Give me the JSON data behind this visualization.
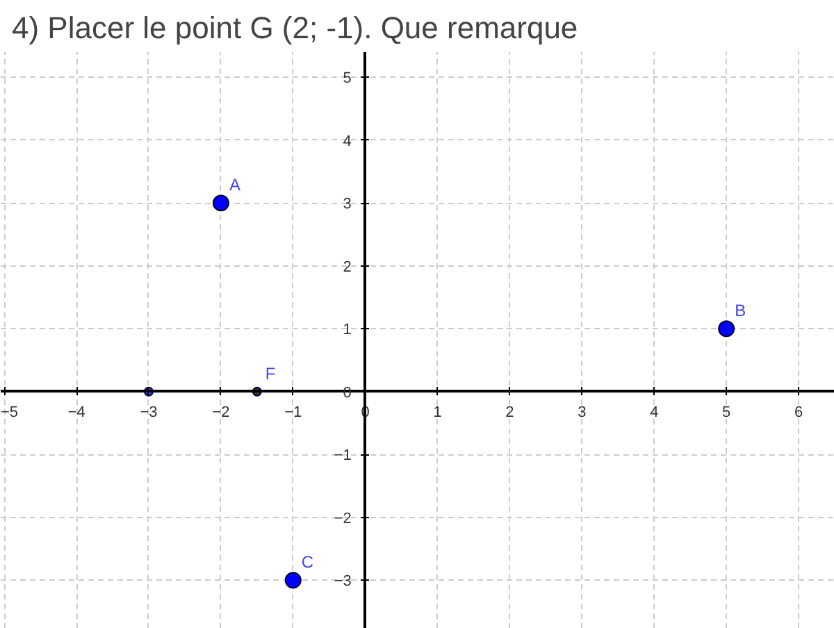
{
  "chart_data": {
    "type": "scatter",
    "title": "4) Placer le point G (2; -1). Que remarque",
    "series": [
      {
        "color": "#0000ff",
        "x": [
          -2,
          5,
          -1
        ],
        "values": [
          3,
          1,
          -3
        ]
      },
      {
        "color": "#4040ff",
        "x": [
          -3
        ],
        "values": [
          0
        ]
      },
      {
        "color": "#333333",
        "x": [
          -1.5
        ],
        "values": [
          0
        ]
      }
    ],
    "annotations": [
      {
        "text": "A",
        "x": -2,
        "y": 3
      },
      {
        "text": "B",
        "x": 5,
        "y": 1
      },
      {
        "text": "C",
        "x": -1,
        "y": -3
      },
      {
        "text": "F",
        "x": -1.5,
        "y": 0
      }
    ],
    "xlim": [
      -5.05,
      6.5
    ],
    "ylim": [
      -3.77,
      5.4
    ],
    "xticks": [
      -5,
      -4,
      -3,
      -2,
      -1,
      0,
      1,
      2,
      3,
      4,
      5,
      6
    ],
    "yticks": [
      -3,
      -2,
      -1,
      0,
      1,
      2,
      3,
      4,
      5
    ],
    "grid": true,
    "marker": "circle"
  }
}
